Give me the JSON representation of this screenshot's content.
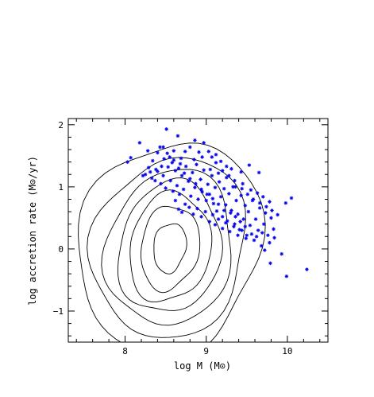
{
  "chart_data": {
    "type": "scatter",
    "title": "",
    "xlabel": "log M (M⊙)",
    "ylabel": "log accretion rate (M⊙/yr)",
    "xlim": [
      7.3,
      10.5
    ],
    "ylim": [
      -1.5,
      2.1
    ],
    "xticks": [
      8,
      9,
      10
    ],
    "yticks": [
      -1,
      0,
      1,
      2
    ],
    "grid": false,
    "legend": "none",
    "contours": {
      "center": [
        8.55,
        0.02
      ],
      "levels": [
        {
          "rx": 0.2,
          "ry": 0.4
        },
        {
          "rx": 0.36,
          "ry": 0.68
        },
        {
          "rx": 0.5,
          "ry": 0.88
        },
        {
          "rx": 0.63,
          "ry": 1.06
        },
        {
          "rx": 0.78,
          "ry": 1.25
        },
        {
          "rx": 0.95,
          "ry": 1.45
        },
        {
          "rx": 1.13,
          "ry": 1.72
        }
      ],
      "color": "#000000"
    },
    "series": [
      {
        "marker": "asterisk",
        "color": "#0000ee",
        "points": [
          [
            8.03,
            1.4
          ],
          [
            8.07,
            1.47
          ],
          [
            8.18,
            1.71
          ],
          [
            8.28,
            1.58
          ],
          [
            8.34,
            1.42
          ],
          [
            8.4,
            1.55
          ],
          [
            8.43,
            1.64
          ],
          [
            8.47,
            1.64
          ],
          [
            8.51,
            1.93
          ],
          [
            8.55,
            1.48
          ],
          [
            8.6,
            1.58
          ],
          [
            8.65,
            1.82
          ],
          [
            8.69,
            1.46
          ],
          [
            8.74,
            1.57
          ],
          [
            8.8,
            1.64
          ],
          [
            8.85,
            1.44
          ],
          [
            8.91,
            1.56
          ],
          [
            8.97,
            1.71
          ],
          [
            9.03,
            1.57
          ],
          [
            9.07,
            1.48
          ],
          [
            9.12,
            1.39
          ],
          [
            9.18,
            1.41
          ],
          [
            9.25,
            1.33
          ],
          [
            9.31,
            1.29
          ],
          [
            9.43,
            1.24
          ],
          [
            9.53,
            1.35
          ],
          [
            9.65,
            1.23
          ],
          [
            8.25,
            1.2
          ],
          [
            8.29,
            1.31
          ],
          [
            8.33,
            1.14
          ],
          [
            8.37,
            1.1
          ],
          [
            8.4,
            1.25
          ],
          [
            8.44,
            1.05
          ],
          [
            8.47,
            1.18
          ],
          [
            8.5,
            0.98
          ],
          [
            8.53,
            1.32
          ],
          [
            8.56,
            1.1
          ],
          [
            8.59,
            0.93
          ],
          [
            8.62,
            1.26
          ],
          [
            8.64,
            1.02
          ],
          [
            8.67,
            0.88
          ],
          [
            8.7,
            1.18
          ],
          [
            8.72,
            0.96
          ],
          [
            8.75,
            1.33
          ],
          [
            8.78,
            1.09
          ],
          [
            8.81,
            0.85
          ],
          [
            8.83,
            1.23
          ],
          [
            8.86,
            0.99
          ],
          [
            8.88,
            1.36
          ],
          [
            8.9,
            0.8
          ],
          [
            8.93,
            1.12
          ],
          [
            8.95,
            0.92
          ],
          [
            8.97,
            1.27
          ],
          [
            9.0,
            0.78
          ],
          [
            9.02,
            1.04
          ],
          [
            9.04,
            0.88
          ],
          [
            9.07,
            1.18
          ],
          [
            9.09,
            0.73
          ],
          [
            9.11,
            0.99
          ],
          [
            9.13,
            0.61
          ],
          [
            9.16,
            1.08
          ],
          [
            9.18,
            0.84
          ],
          [
            9.2,
            0.52
          ],
          [
            9.22,
            0.97
          ],
          [
            9.24,
            0.71
          ],
          [
            9.26,
            0.45
          ],
          [
            9.28,
            0.89
          ],
          [
            9.31,
            0.62
          ],
          [
            9.33,
            1.0
          ],
          [
            9.35,
            0.4
          ],
          [
            9.37,
            0.78
          ],
          [
            9.39,
            0.56
          ],
          [
            9.41,
            0.31
          ],
          [
            9.43,
            0.86
          ],
          [
            9.46,
            0.48
          ],
          [
            9.48,
            0.7
          ],
          [
            9.5,
            0.22
          ],
          [
            9.52,
            0.6
          ],
          [
            9.54,
            0.38
          ],
          [
            9.57,
            0.78
          ],
          [
            9.59,
            0.14
          ],
          [
            9.61,
            0.48
          ],
          [
            9.64,
            0.3
          ],
          [
            9.66,
            0.66
          ],
          [
            9.68,
            0.05
          ],
          [
            9.71,
            0.4
          ],
          [
            9.73,
            0.58
          ],
          [
            8.62,
            0.78
          ],
          [
            8.66,
            0.64
          ],
          [
            8.7,
            0.59
          ],
          [
            8.74,
            0.72
          ],
          [
            8.79,
            0.67
          ],
          [
            8.84,
            0.56
          ],
          [
            8.89,
            0.65
          ],
          [
            8.94,
            0.52
          ],
          [
            8.99,
            0.6
          ],
          [
            9.04,
            0.44
          ],
          [
            9.08,
            0.55
          ],
          [
            9.11,
            0.39
          ],
          [
            9.15,
            0.48
          ],
          [
            9.2,
            0.33
          ],
          [
            9.24,
            0.42
          ],
          [
            9.29,
            0.28
          ],
          [
            9.34,
            0.36
          ],
          [
            9.39,
            0.22
          ],
          [
            9.44,
            0.3
          ],
          [
            9.49,
            0.17
          ],
          [
            8.48,
            1.45
          ],
          [
            8.58,
            1.39
          ],
          [
            8.68,
            1.37
          ],
          [
            8.86,
            1.75
          ],
          [
            8.95,
            1.48
          ],
          [
            9.05,
            1.28
          ],
          [
            9.15,
            1.22
          ],
          [
            9.25,
            1.15
          ],
          [
            9.35,
            1.1
          ],
          [
            9.45,
            1.05
          ],
          [
            9.55,
            0.95
          ],
          [
            9.63,
            0.9
          ],
          [
            9.7,
            0.84
          ],
          [
            9.78,
            0.76
          ],
          [
            9.8,
            0.5
          ],
          [
            9.83,
            0.32
          ],
          [
            9.76,
            0.22
          ],
          [
            9.69,
            0.26
          ],
          [
            9.62,
            0.2
          ],
          [
            9.56,
            0.24
          ],
          [
            9.48,
            0.36
          ],
          [
            9.42,
            0.44
          ],
          [
            9.36,
            0.52
          ],
          [
            9.3,
            0.58
          ],
          [
            9.22,
            0.62
          ],
          [
            9.15,
            0.72
          ],
          [
            9.08,
            0.81
          ],
          [
            9.01,
            0.88
          ],
          [
            8.94,
            0.96
          ],
          [
            8.87,
            1.05
          ],
          [
            8.8,
            1.13
          ],
          [
            8.73,
            1.22
          ],
          [
            8.66,
            1.3
          ],
          [
            8.6,
            1.43
          ],
          [
            8.52,
            1.54
          ],
          [
            8.45,
            1.33
          ],
          [
            8.38,
            1.28
          ],
          [
            8.31,
            1.24
          ],
          [
            8.22,
            1.18
          ],
          [
            9.12,
            1.52
          ],
          [
            9.2,
            1.26
          ],
          [
            9.28,
            1.18
          ],
          [
            9.36,
            1.0
          ],
          [
            9.44,
            0.97
          ],
          [
            9.51,
            0.88
          ],
          [
            9.58,
            0.8
          ],
          [
            9.66,
            0.74
          ],
          [
            9.74,
            0.68
          ],
          [
            9.81,
            0.62
          ],
          [
            9.88,
            0.55
          ],
          [
            9.84,
            0.18
          ],
          [
            9.78,
            0.1
          ],
          [
            9.72,
            -0.02
          ],
          [
            9.79,
            -0.23
          ],
          [
            10.05,
            0.82
          ],
          [
            9.98,
            0.74
          ],
          [
            9.93,
            -0.08
          ],
          [
            9.99,
            -0.44
          ],
          [
            10.24,
            -0.33
          ]
        ]
      }
    ]
  }
}
